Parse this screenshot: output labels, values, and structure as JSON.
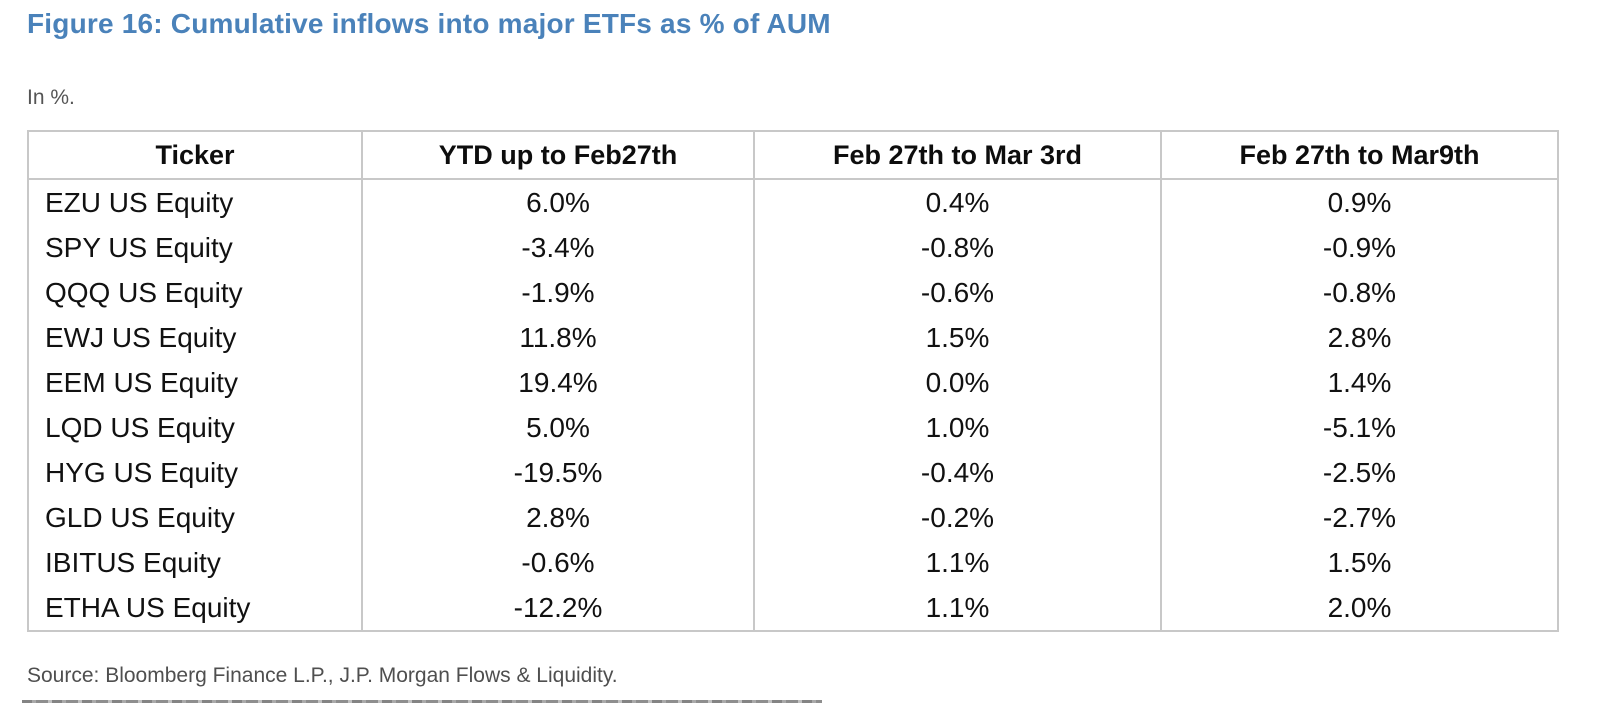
{
  "figure": {
    "title": "Figure 16: Cumulative inflows into major ETFs as % of AUM",
    "subtitle": "In %.",
    "source": "Source: Bloomberg Finance L.P., J.P. Morgan Flows & Liquidity.",
    "title_color": "#4a82ba",
    "border_color": "#c8c8c8"
  },
  "chart_data": {
    "type": "table",
    "title": "Figure 16: Cumulative inflows into major ETFs as % of AUM",
    "unit": "%",
    "columns": [
      "Ticker",
      "YTD up to Feb27th",
      "Feb 27th to Mar 3rd",
      "Feb 27th to Mar9th"
    ],
    "rows": [
      [
        "EZU US Equity",
        "6.0%",
        "0.4%",
        "0.9%"
      ],
      [
        "SPY US Equity",
        "-3.4%",
        "-0.8%",
        "-0.9%"
      ],
      [
        "QQQ US Equity",
        "-1.9%",
        "-0.6%",
        "-0.8%"
      ],
      [
        "EWJ US Equity",
        "11.8%",
        "1.5%",
        "2.8%"
      ],
      [
        "EEM US Equity",
        "19.4%",
        "0.0%",
        "1.4%"
      ],
      [
        "LQD US Equity",
        "5.0%",
        "1.0%",
        "-5.1%"
      ],
      [
        "HYG US Equity",
        "-19.5%",
        "-0.4%",
        "-2.5%"
      ],
      [
        "GLD US Equity",
        "2.8%",
        "-0.2%",
        "-2.7%"
      ],
      [
        "IBITUS Equity",
        "-0.6%",
        "1.1%",
        "1.5%"
      ],
      [
        "ETHA US Equity",
        "-12.2%",
        "1.1%",
        "2.0%"
      ]
    ],
    "series": [
      {
        "name": "YTD up to Feb27th",
        "values": [
          6.0,
          -3.4,
          -1.9,
          11.8,
          19.4,
          5.0,
          -19.5,
          2.8,
          -0.6,
          -12.2
        ]
      },
      {
        "name": "Feb 27th to Mar 3rd",
        "values": [
          0.4,
          -0.8,
          -0.6,
          1.5,
          0.0,
          1.0,
          -0.4,
          -0.2,
          1.1,
          1.1
        ]
      },
      {
        "name": "Feb 27th to Mar9th",
        "values": [
          0.9,
          -0.9,
          -0.8,
          2.8,
          1.4,
          -5.1,
          -2.5,
          -2.7,
          1.5,
          2.0
        ]
      }
    ],
    "categories": [
      "EZU US Equity",
      "SPY US Equity",
      "QQQ US Equity",
      "EWJ US Equity",
      "EEM US Equity",
      "LQD US Equity",
      "HYG US Equity",
      "GLD US Equity",
      "IBITUS Equity",
      "ETHA US Equity"
    ]
  }
}
